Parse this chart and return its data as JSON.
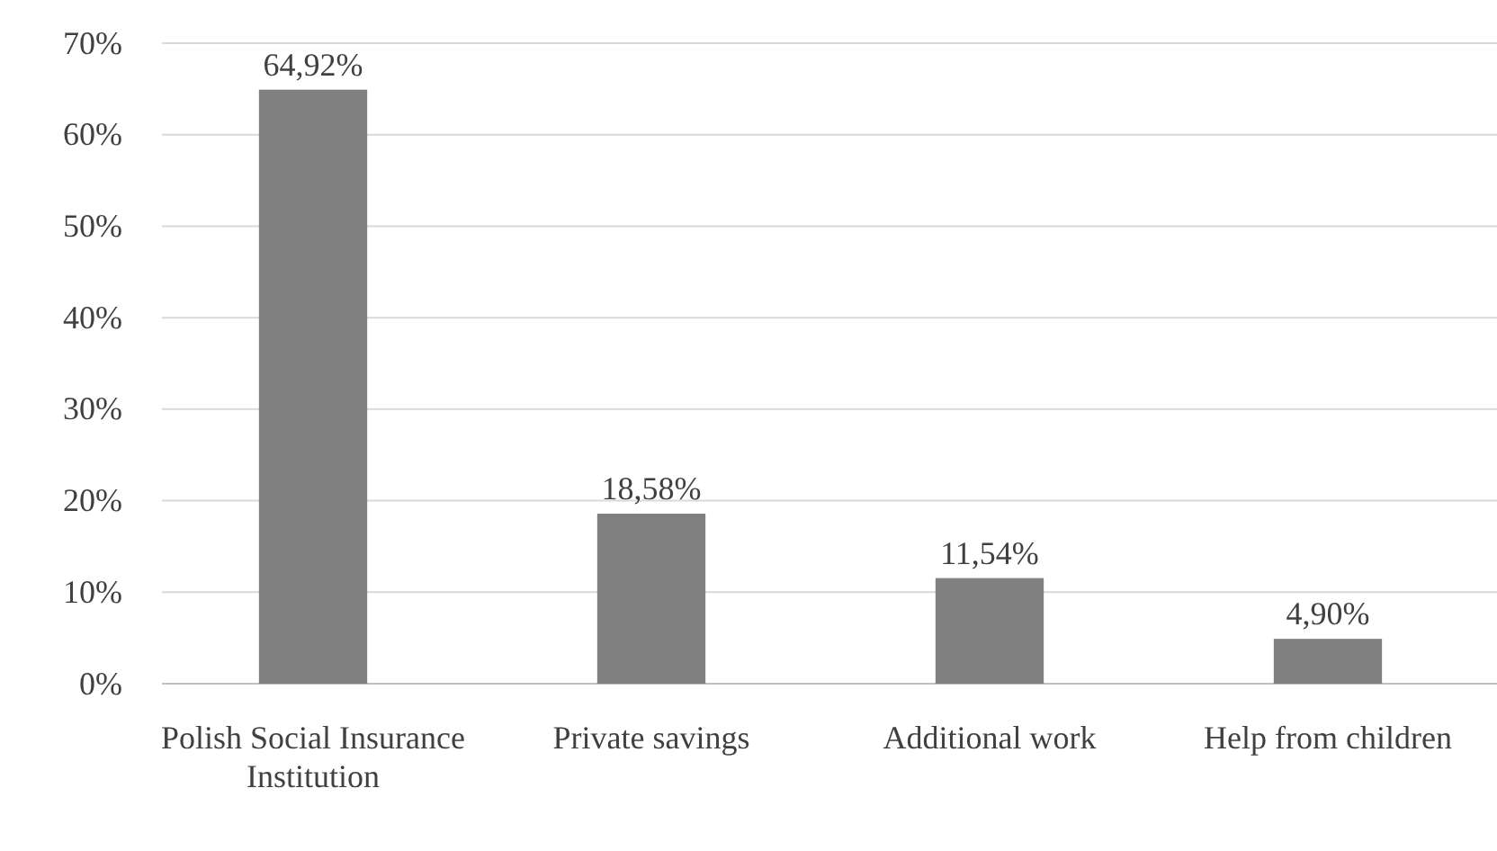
{
  "chart_data": {
    "type": "bar",
    "categories": [
      "Polish Social Insurance Institution",
      "Private savings",
      "Additional work",
      "Help from children"
    ],
    "values": [
      64.92,
      18.58,
      11.54,
      4.9
    ],
    "value_labels": [
      "64,92%",
      "18,58%",
      "11,54%",
      "4,90%"
    ],
    "color": "#808080",
    "ylim": [
      0,
      70
    ],
    "yticks": [
      {
        "value": 0,
        "label": "0%"
      },
      {
        "value": 10,
        "label": "10%"
      },
      {
        "value": 20,
        "label": "20%"
      },
      {
        "value": 30,
        "label": "30%"
      },
      {
        "value": 40,
        "label": "40%"
      },
      {
        "value": 50,
        "label": "50%"
      },
      {
        "value": 60,
        "label": "60%"
      },
      {
        "value": 70,
        "label": "70%"
      }
    ],
    "grid": "y"
  }
}
